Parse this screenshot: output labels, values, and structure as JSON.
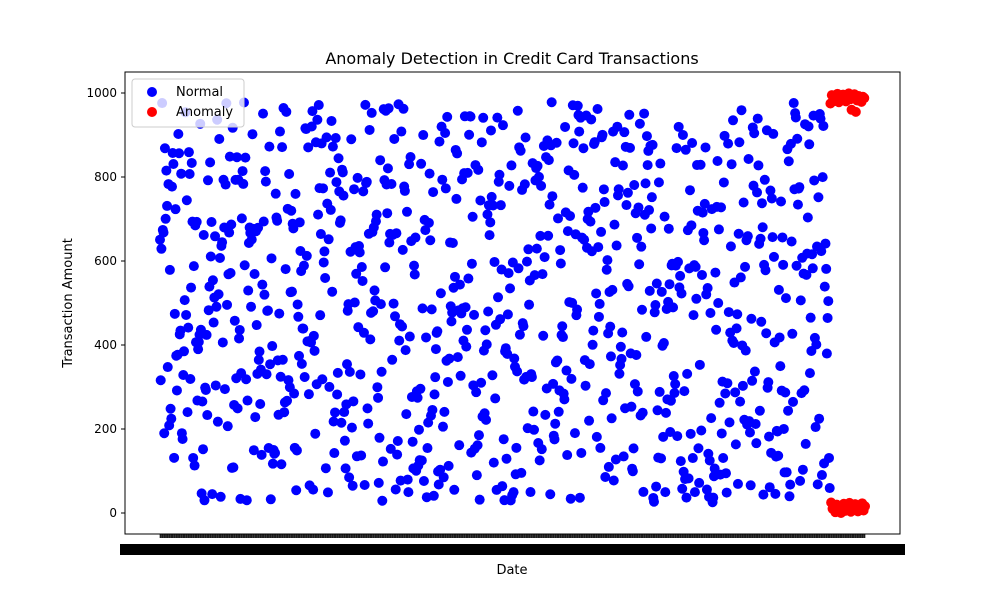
{
  "chart_data": {
    "type": "scatter",
    "title": "Anomaly Detection in Credit Card Transactions",
    "xlabel": "Date",
    "ylabel": "Transaction Amount",
    "ylim": [
      -50,
      1050
    ],
    "yticks": [
      0,
      200,
      400,
      600,
      800,
      1000
    ],
    "x_index_range": [
      0,
      999
    ],
    "x_ticks_note": "one tick per date; tick labels overlap into an illegible band",
    "legend_position": "upper-left",
    "grid": false,
    "series": [
      {
        "name": "Normal",
        "color": "#0000ff",
        "point_count": 950,
        "x_index_range": [
          0,
          949
        ],
        "y_range": [
          25,
          980
        ]
      },
      {
        "name": "Anomaly",
        "color": "#ff0000",
        "point_count": 50,
        "x_index_range": [
          950,
          999
        ],
        "points": [
          {
            "x": 950,
            "y": 975
          },
          {
            "x": 952,
            "y": 995
          },
          {
            "x": 954,
            "y": 980
          },
          {
            "x": 956,
            "y": 990
          },
          {
            "x": 958,
            "y": 985
          },
          {
            "x": 960,
            "y": 998
          },
          {
            "x": 962,
            "y": 978
          },
          {
            "x": 964,
            "y": 992
          },
          {
            "x": 966,
            "y": 983
          },
          {
            "x": 968,
            "y": 996
          },
          {
            "x": 970,
            "y": 988
          },
          {
            "x": 972,
            "y": 980
          },
          {
            "x": 974,
            "y": 994
          },
          {
            "x": 976,
            "y": 999
          },
          {
            "x": 978,
            "y": 985
          },
          {
            "x": 980,
            "y": 960
          },
          {
            "x": 982,
            "y": 990
          },
          {
            "x": 984,
            "y": 997
          },
          {
            "x": 986,
            "y": 955
          },
          {
            "x": 988,
            "y": 982
          },
          {
            "x": 990,
            "y": 993
          },
          {
            "x": 992,
            "y": 986
          },
          {
            "x": 994,
            "y": 979
          },
          {
            "x": 996,
            "y": 991
          },
          {
            "x": 998,
            "y": 988
          },
          {
            "x": 951,
            "y": 25
          },
          {
            "x": 953,
            "y": 10
          },
          {
            "x": 955,
            "y": 18
          },
          {
            "x": 957,
            "y": 2
          },
          {
            "x": 959,
            "y": 20
          },
          {
            "x": 961,
            "y": 8
          },
          {
            "x": 963,
            "y": 15
          },
          {
            "x": 965,
            "y": 0
          },
          {
            "x": 967,
            "y": 12
          },
          {
            "x": 969,
            "y": 22
          },
          {
            "x": 971,
            "y": 5
          },
          {
            "x": 973,
            "y": 17
          },
          {
            "x": 975,
            "y": 9
          },
          {
            "x": 977,
            "y": 24
          },
          {
            "x": 979,
            "y": 3
          },
          {
            "x": 981,
            "y": 14
          },
          {
            "x": 983,
            "y": 7
          },
          {
            "x": 985,
            "y": 21
          },
          {
            "x": 987,
            "y": 11
          },
          {
            "x": 989,
            "y": 4
          },
          {
            "x": 991,
            "y": 19
          },
          {
            "x": 993,
            "y": 13
          },
          {
            "x": 995,
            "y": 23
          },
          {
            "x": 997,
            "y": 6
          },
          {
            "x": 999,
            "y": 16
          }
        ]
      }
    ]
  }
}
